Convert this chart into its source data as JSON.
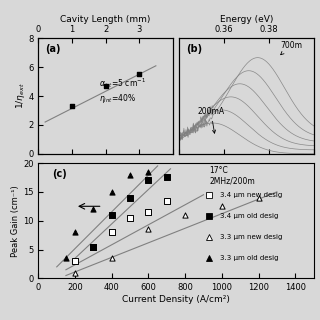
{
  "panel_a": {
    "title": "(a)",
    "xlabel_top": "Cavity Length (mm)",
    "ylabel": "1/η_ext",
    "xtop_ticks": [
      0,
      1,
      2,
      3
    ],
    "ylim": [
      0,
      8
    ],
    "yticks": [
      0,
      2,
      4,
      6,
      8
    ],
    "data_x": [
      1.0,
      2.0,
      3.0
    ],
    "data_y": [
      3.3,
      4.7,
      5.5
    ],
    "line_x": [
      0.2,
      3.5
    ],
    "line_y": [
      2.2,
      6.1
    ]
  },
  "panel_b": {
    "title": "(b)",
    "xlabel_top": "Energy (eV)",
    "xtop_ticks": [
      0.36,
      0.38
    ],
    "annotation_high": "700m",
    "annotation_low": "200mA"
  },
  "panel_c": {
    "title": "(c)",
    "xlabel": "Current Density (A/cm²)",
    "ylabel": "Peak Gain (cm⁻¹)",
    "xlim": [
      0,
      1500
    ],
    "ylim": [
      0,
      20
    ],
    "xticks": [
      0,
      200,
      400,
      600,
      800,
      1000,
      1200,
      1400
    ],
    "yticks": [
      0,
      5,
      10,
      15,
      20
    ],
    "annotation": "17°C\n2MHz/200m",
    "series": [
      {
        "label": "3.4 μm new desig",
        "x": [
          200,
          300,
          400,
          500,
          600,
          700
        ],
        "y": [
          3.0,
          5.5,
          8.0,
          10.5,
          11.5,
          13.5
        ],
        "marker": "s",
        "filled": false,
        "line_x": [
          150,
          900
        ],
        "line_y": [
          1.5,
          14.5
        ]
      },
      {
        "label": "3.4 μm old desig",
        "x": [
          300,
          400,
          500,
          600,
          700
        ],
        "y": [
          5.5,
          11.0,
          14.0,
          17.0,
          17.5
        ],
        "marker": "s",
        "filled": true,
        "line_x": [
          200,
          720
        ],
        "line_y": [
          3.5,
          19.0
        ]
      },
      {
        "label": "3.3 μm new desig",
        "x": [
          200,
          400,
          600,
          800,
          1000,
          1200
        ],
        "y": [
          1.0,
          3.5,
          8.5,
          11.0,
          12.5,
          14.0
        ],
        "marker": "^",
        "filled": false,
        "line_x": [
          150,
          1300
        ],
        "line_y": [
          0.5,
          15.0
        ]
      },
      {
        "label": "3.3 μm old desig",
        "x": [
          150,
          200,
          300,
          400,
          500,
          600
        ],
        "y": [
          3.5,
          8.0,
          12.0,
          15.0,
          18.0,
          18.5
        ],
        "marker": "^",
        "filled": true,
        "line_x": [
          100,
          650
        ],
        "line_y": [
          2.0,
          19.5
        ]
      }
    ]
  },
  "bg_color": "#d8d8d8"
}
